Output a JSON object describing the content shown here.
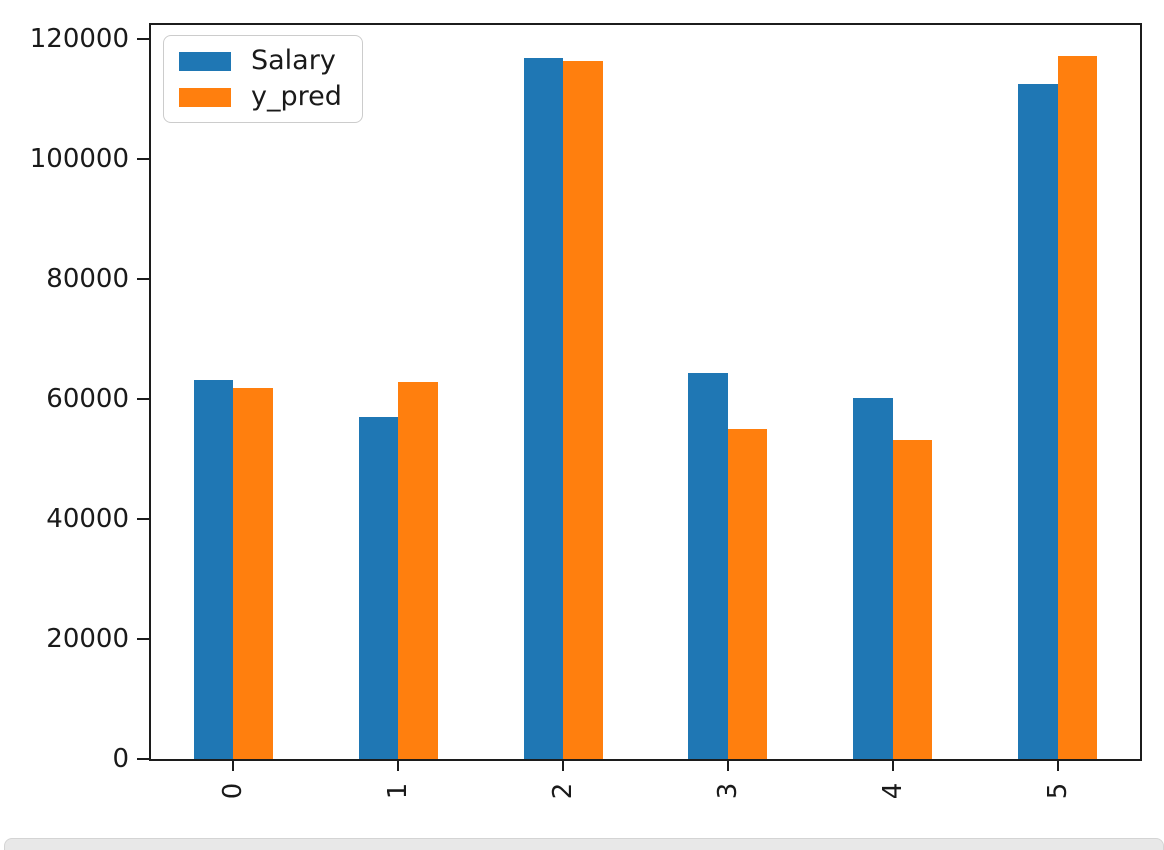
{
  "figure": {
    "background": "#ffffff",
    "spine_color": "#1c1c1c",
    "tick_label_color": "#1a1a1a"
  },
  "chart_data": {
    "type": "bar",
    "title": "",
    "xlabel": "",
    "ylabel": "",
    "categories": [
      "0",
      "1",
      "2",
      "3",
      "4",
      "5"
    ],
    "series": [
      {
        "name": "Salary",
        "color": "#1f77b4",
        "values": [
          63218,
          56957,
          116969,
          64445,
          60150,
          112635
        ]
      },
      {
        "name": "y_pred",
        "color": "#ff7f0e",
        "values": [
          61900,
          62900,
          116400,
          55100,
          53200,
          117300
        ]
      }
    ],
    "ylim": [
      0,
      122400
    ],
    "yticks": [
      0,
      20000,
      40000,
      60000,
      80000,
      100000,
      120000
    ],
    "ytick_labels": [
      "0",
      "20000",
      "40000",
      "60000",
      "80000",
      "100000",
      "120000"
    ],
    "x_tick_rotation": 90,
    "grid": false,
    "legend_position": "upper-left",
    "legend_border_color": "#cccccc"
  },
  "notebook": {
    "next_cell_strip_color": "#e8e8e8"
  }
}
